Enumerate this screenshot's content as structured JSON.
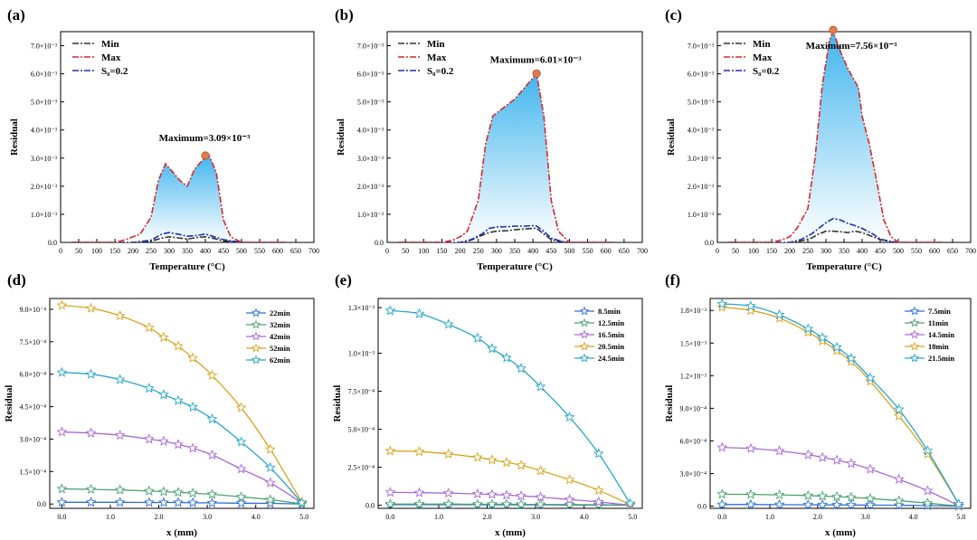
{
  "figure": {
    "panel_labels": [
      "(a)",
      "(b)",
      "(c)",
      "(d)",
      "(e)",
      "(f)"
    ]
  },
  "chart_data": [
    {
      "panel": "(a)",
      "type": "area",
      "xlabel": "Temperature (°C)",
      "ylabel": "Residual",
      "xlim": [
        0,
        700
      ],
      "ylim": [
        0,
        0.0075
      ],
      "xticks": [
        0,
        50,
        100,
        150,
        200,
        250,
        300,
        350,
        400,
        450,
        500,
        550,
        600,
        650,
        700
      ],
      "yticks": [
        0,
        0.001,
        0.002,
        0.003,
        0.004,
        0.005,
        0.006,
        0.007
      ],
      "ytick_labels": [
        "0.0",
        "1.0×10⁻³",
        "2.0×10⁻³",
        "3.0×10⁻³",
        "4.0×10⁻³",
        "5.0×10⁻³",
        "6.0×10⁻³",
        "7.0×10⁻³"
      ],
      "legend": [
        "Min",
        "Max",
        "S₀=0.2"
      ],
      "annotation": "Maximum=3.09×10⁻³",
      "peak": [
        400,
        0.00309
      ],
      "series": [
        {
          "name": "Min",
          "color": "#333333",
          "x": [
            30,
            150,
            200,
            250,
            280,
            300,
            330,
            350,
            380,
            400,
            420,
            450,
            500,
            620
          ],
          "y": [
            0,
            0,
            0,
            5e-05,
            0.00015,
            0.0002,
            0.00015,
            0.00012,
            0.00018,
            0.0002,
            0.00015,
            5e-05,
            0,
            0
          ]
        },
        {
          "name": "Max",
          "color": "#d9282a",
          "x": [
            30,
            150,
            180,
            200,
            220,
            250,
            270,
            290,
            310,
            330,
            350,
            370,
            390,
            410,
            430,
            450,
            470,
            500,
            620
          ],
          "y": [
            0,
            0,
            0.0001,
            0.0002,
            0.0003,
            0.0009,
            0.0022,
            0.0028,
            0.0025,
            0.0022,
            0.002,
            0.0026,
            0.0029,
            0.0031,
            0.0025,
            0.0008,
            0.0002,
            0,
            0
          ]
        },
        {
          "name": "S₀=0.2",
          "color": "#1a2fb0",
          "x": [
            30,
            150,
            200,
            250,
            280,
            300,
            330,
            350,
            380,
            400,
            420,
            450,
            500,
            620
          ],
          "y": [
            0,
            0,
            0,
            8e-05,
            0.0003,
            0.00035,
            0.00028,
            0.00022,
            0.00025,
            0.0003,
            0.00022,
            0.0001,
            0,
            0
          ]
        }
      ]
    },
    {
      "panel": "(b)",
      "type": "area",
      "xlabel": "Temperature (°C)",
      "ylabel": "Residual",
      "xlim": [
        0,
        700
      ],
      "ylim": [
        0,
        0.0075
      ],
      "xticks": [
        0,
        50,
        100,
        150,
        200,
        250,
        300,
        350,
        400,
        450,
        500,
        550,
        600,
        650,
        700
      ],
      "yticks": [
        0,
        0.001,
        0.002,
        0.003,
        0.004,
        0.005,
        0.006,
        0.007
      ],
      "ytick_labels": [
        "0.0",
        "1.0×10⁻³",
        "2.0×10⁻³",
        "3.0×10⁻³",
        "4.0×10⁻³",
        "5.0×10⁻³",
        "6.0×10⁻³",
        "7.0×10⁻³"
      ],
      "legend": [
        "Min",
        "Max",
        "S₀=0.2"
      ],
      "annotation": "Maximum=6.01×10⁻³",
      "peak": [
        410,
        0.00601
      ],
      "series": [
        {
          "name": "Min",
          "color": "#333333",
          "x": [
            30,
            150,
            200,
            230,
            260,
            280,
            300,
            330,
            350,
            380,
            400,
            410,
            430,
            450,
            480,
            500,
            620
          ],
          "y": [
            0,
            0,
            0,
            8e-05,
            0.00025,
            0.00035,
            0.0004,
            0.00042,
            0.00045,
            0.00048,
            0.0005,
            0.0005,
            0.0003,
            0.0001,
            2e-05,
            0,
            0
          ]
        },
        {
          "name": "Max",
          "color": "#d9282a",
          "x": [
            30,
            150,
            180,
            200,
            220,
            250,
            270,
            290,
            310,
            330,
            350,
            370,
            390,
            410,
            430,
            450,
            470,
            500,
            620
          ],
          "y": [
            0,
            0,
            8e-05,
            0.0002,
            0.0004,
            0.0015,
            0.0035,
            0.0045,
            0.0047,
            0.0049,
            0.0051,
            0.0054,
            0.0057,
            0.006,
            0.0045,
            0.0015,
            0.0004,
            0,
            0
          ]
        },
        {
          "name": "S₀=0.2",
          "color": "#1a2fb0",
          "x": [
            30,
            150,
            200,
            230,
            260,
            280,
            300,
            330,
            350,
            380,
            400,
            410,
            430,
            450,
            480,
            500,
            620
          ],
          "y": [
            0,
            0,
            0,
            0.0001,
            0.0003,
            0.0005,
            0.00055,
            0.00056,
            0.00058,
            0.00058,
            0.0006,
            0.00058,
            0.0004,
            0.00015,
            3e-05,
            0,
            0
          ]
        }
      ]
    },
    {
      "panel": "(c)",
      "type": "area",
      "xlabel": "Temperature (°C)",
      "ylabel": "Residual",
      "xlim": [
        0,
        700
      ],
      "ylim": [
        0,
        0.0075
      ],
      "xticks": [
        0,
        50,
        100,
        150,
        200,
        250,
        300,
        350,
        400,
        450,
        500,
        550,
        600,
        650,
        700
      ],
      "yticks": [
        0,
        0.001,
        0.002,
        0.003,
        0.004,
        0.005,
        0.006,
        0.007
      ],
      "ytick_labels": [
        "0.0",
        "1.0×10⁻³",
        "2.0×10⁻³",
        "3.0×10⁻³",
        "4.0×10⁻³",
        "5.0×10⁻³",
        "6.0×10⁻³",
        "7.0×10⁻³"
      ],
      "legend": [
        "Min",
        "Max",
        "S₀=0.2"
      ],
      "annotation": "Maximum=7.56×10⁻³",
      "peak": [
        320,
        0.00756
      ],
      "series": [
        {
          "name": "Min",
          "color": "#333333",
          "x": [
            30,
            150,
            200,
            230,
            260,
            280,
            300,
            320,
            340,
            360,
            380,
            400,
            430,
            450,
            480,
            500,
            620
          ],
          "y": [
            0,
            0,
            0,
            5e-05,
            0.00015,
            0.0003,
            0.0004,
            0.0004,
            0.00038,
            0.00035,
            0.0004,
            0.00035,
            0.0002,
            0.0001,
            2e-05,
            0,
            0
          ]
        },
        {
          "name": "Max",
          "color": "#d9282a",
          "x": [
            30,
            150,
            180,
            200,
            220,
            250,
            270,
            290,
            310,
            320,
            340,
            360,
            390,
            400,
            420,
            440,
            460,
            480,
            500,
            620
          ],
          "y": [
            0,
            0,
            0.0001,
            0.0002,
            0.0005,
            0.0012,
            0.003,
            0.0056,
            0.0072,
            0.0075,
            0.0068,
            0.0062,
            0.0055,
            0.0045,
            0.0035,
            0.0022,
            0.0008,
            0.0002,
            0,
            0
          ]
        },
        {
          "name": "S₀=0.2",
          "color": "#1a2fb0",
          "x": [
            30,
            150,
            200,
            230,
            260,
            280,
            300,
            320,
            340,
            360,
            380,
            400,
            430,
            450,
            480,
            500,
            620
          ],
          "y": [
            0,
            0,
            0,
            0.0001,
            0.0003,
            0.0005,
            0.0007,
            0.00085,
            0.0008,
            0.00068,
            0.0006,
            0.0005,
            0.0003,
            0.00012,
            3e-05,
            0,
            0
          ]
        }
      ]
    },
    {
      "panel": "(d)",
      "type": "line",
      "xlabel": "x (mm)",
      "ylabel": "Residual",
      "xlim": [
        -0.25,
        5.2
      ],
      "ylim": [
        -2e-05,
        0.00095
      ],
      "xticks": [
        0,
        1,
        2,
        3,
        4,
        5
      ],
      "xtick_labels": [
        "0.0",
        "1.0",
        "2.0",
        "3.0",
        "4.0",
        "5.0"
      ],
      "yticks": [
        0,
        0.00015,
        0.0003,
        0.00045,
        0.0006,
        0.00075,
        0.0009
      ],
      "ytick_labels": [
        "0.0",
        "1.5×10⁻⁴",
        "3.0×10⁻⁴",
        "4.5×10⁻⁴",
        "6.0×10⁻⁴",
        "7.5×10⁻⁴",
        "9.0×10⁻⁴"
      ],
      "x": [
        0,
        0.6,
        1.2,
        1.8,
        2.1,
        2.4,
        2.7,
        3.1,
        3.7,
        4.3,
        4.95
      ],
      "series": [
        {
          "name": "22min",
          "color": "#2f6fd6",
          "values": [
            8e-06,
            8e-06,
            8e-06,
            7e-06,
            7e-06,
            7e-06,
            6e-06,
            5e-06,
            4e-06,
            3e-06,
            0
          ]
        },
        {
          "name": "32min",
          "color": "#4aa36f",
          "values": [
            7e-05,
            6.8e-05,
            6.5e-05,
            6e-05,
            5.7e-05,
            5.4e-05,
            5e-05,
            4.5e-05,
            3.3e-05,
            2e-05,
            0
          ]
        },
        {
          "name": "42min",
          "color": "#a66ad9",
          "values": [
            0.000333,
            0.000328,
            0.000318,
            0.0003,
            0.00029,
            0.000275,
            0.000258,
            0.000227,
            0.000162,
            9.8e-05,
            5e-06
          ]
        },
        {
          "name": "52min",
          "color": "#d9a420",
          "values": [
            0.000918,
            0.000905,
            0.00087,
            0.000815,
            0.00077,
            0.00073,
            0.000675,
            0.000595,
            0.000445,
            0.000253,
            8e-06
          ]
        },
        {
          "name": "62min",
          "color": "#27a6c9",
          "values": [
            0.000608,
            0.0006,
            0.000575,
            0.000535,
            0.000505,
            0.000478,
            0.000448,
            0.000393,
            0.000287,
            0.000168,
            6e-06
          ]
        }
      ]
    },
    {
      "panel": "(e)",
      "type": "line",
      "xlabel": "x (mm)",
      "ylabel": "Residual",
      "xlim": [
        -0.25,
        5.2
      ],
      "ylim": [
        -2e-05,
        0.00136
      ],
      "xticks": [
        0,
        1,
        2,
        3,
        4,
        5
      ],
      "xtick_labels": [
        "0.0",
        "1.0",
        "2.0",
        "3.0",
        "4.0",
        "5.0"
      ],
      "yticks": [
        0,
        0.00025,
        0.0005,
        0.00075,
        0.001,
        0.0013
      ],
      "ytick_labels": [
        "0.0",
        "2.5×10⁻⁴",
        "5.0×10⁻⁴",
        "7.5×10⁻⁴",
        "1.0×10⁻³",
        "1.3×10⁻³"
      ],
      "x": [
        0,
        0.6,
        1.2,
        1.8,
        2.1,
        2.4,
        2.7,
        3.1,
        3.7,
        4.3,
        4.95
      ],
      "series": [
        {
          "name": "8.5min",
          "color": "#2f6fd6",
          "values": [
            4e-06,
            4e-06,
            4e-06,
            4e-06,
            3e-06,
            3e-06,
            3e-06,
            3e-06,
            2e-06,
            2e-06,
            0
          ]
        },
        {
          "name": "12.5min",
          "color": "#4aa36f",
          "values": [
            8e-06,
            8e-06,
            8e-06,
            7e-06,
            7e-06,
            7e-06,
            6e-06,
            6e-06,
            5e-06,
            4e-06,
            0
          ]
        },
        {
          "name": "16.5min",
          "color": "#a66ad9",
          "values": [
            8.5e-05,
            8.3e-05,
            8e-05,
            7.5e-05,
            7.1e-05,
            6.7e-05,
            6.2e-05,
            5.4e-05,
            3.8e-05,
            2.2e-05,
            0
          ]
        },
        {
          "name": "20.5min",
          "color": "#d9a420",
          "values": [
            0.000358,
            0.000353,
            0.000338,
            0.000315,
            0.000298,
            0.000282,
            0.000263,
            0.000228,
            0.000168,
            9.8e-05,
            5e-06
          ]
        },
        {
          "name": "24.5min",
          "color": "#27a6c9",
          "values": [
            0.00128,
            0.00126,
            0.00119,
            0.0011,
            0.00103,
            0.00097,
            0.0009,
            0.00078,
            0.00058,
            0.00034,
            1.2e-05
          ]
        }
      ]
    },
    {
      "panel": "(f)",
      "type": "line",
      "xlabel": "x (mm)",
      "ylabel": "Residual",
      "xlim": [
        -0.25,
        5.2
      ],
      "ylim": [
        -2e-05,
        0.00191
      ],
      "xticks": [
        0,
        1,
        2,
        3,
        4,
        5
      ],
      "xtick_labels": [
        "0.0",
        "1.0",
        "2.0",
        "3.0",
        "4.0",
        "5.0"
      ],
      "yticks": [
        0,
        0.0003,
        0.0006,
        0.0009,
        0.0012,
        0.0015,
        0.0018
      ],
      "ytick_labels": [
        "0.0",
        "3.0×10⁻⁴",
        "6.0×10⁻⁴",
        "9.0×10⁻⁴",
        "1.2×10⁻³",
        "1.5×10⁻³",
        "1.8×10⁻³"
      ],
      "x": [
        0,
        0.6,
        1.2,
        1.8,
        2.1,
        2.4,
        2.7,
        3.1,
        3.7,
        4.3,
        4.95
      ],
      "series": [
        {
          "name": "7.5min",
          "color": "#2f6fd6",
          "values": [
            1.5e-05,
            1.5e-05,
            1.4e-05,
            1.3e-05,
            1.3e-05,
            1.2e-05,
            1.1e-05,
            1e-05,
            8e-06,
            5e-06,
            0
          ]
        },
        {
          "name": "11min",
          "color": "#4aa36f",
          "values": [
            0.00011,
            0.000108,
            0.000104,
            9.7e-05,
            9.2e-05,
            8.7e-05,
            8.1e-05,
            7e-05,
            5e-05,
            2.8e-05,
            1e-06
          ]
        },
        {
          "name": "14.5min",
          "color": "#a66ad9",
          "values": [
            0.00054,
            0.00053,
            0.000508,
            0.000473,
            0.000448,
            0.000423,
            0.000393,
            0.00034,
            0.000247,
            0.000142,
            5e-06
          ]
        },
        {
          "name": "18min",
          "color": "#d9a420",
          "values": [
            0.00183,
            0.0018,
            0.00173,
            0.0016,
            0.00152,
            0.00143,
            0.00133,
            0.00115,
            0.00083,
            0.00048,
            2e-05
          ]
        },
        {
          "name": "21.5min",
          "color": "#27a6c9",
          "values": [
            0.00186,
            0.00184,
            0.00176,
            0.00163,
            0.00155,
            0.00146,
            0.00136,
            0.00118,
            0.00089,
            0.00051,
            2e-05
          ]
        }
      ]
    }
  ]
}
